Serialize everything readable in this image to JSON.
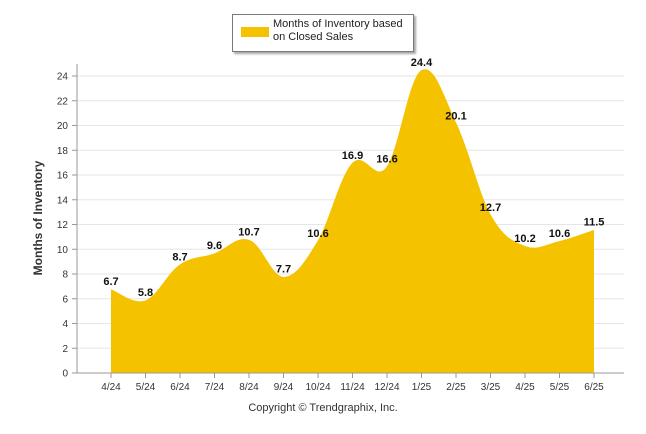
{
  "chart_data": {
    "type": "area",
    "categories": [
      "4/24",
      "5/24",
      "6/24",
      "7/24",
      "8/24",
      "9/24",
      "10/24",
      "11/24",
      "12/24",
      "1/25",
      "2/25",
      "3/25",
      "4/25",
      "5/25",
      "6/25"
    ],
    "series": [
      {
        "name": "Months of Inventory based on Closed Sales",
        "values": [
          6.7,
          5.8,
          8.7,
          9.6,
          10.7,
          7.7,
          10.6,
          16.9,
          16.6,
          24.4,
          20.1,
          12.7,
          10.2,
          10.6,
          11.5
        ]
      }
    ],
    "ylabel": "Months of Inventory",
    "xlabel": "",
    "ylim": [
      0,
      24
    ],
    "yticks": [
      0,
      2,
      4,
      6,
      8,
      10,
      12,
      14,
      16,
      18,
      20,
      22,
      24
    ],
    "grid": true,
    "legend": "top-center",
    "color": "#f5c200",
    "footer": "Copyright © Trendgraphix, Inc."
  }
}
